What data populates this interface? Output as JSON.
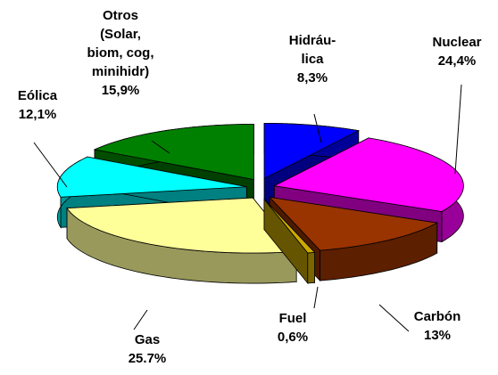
{
  "chart_data": {
    "type": "pie3d",
    "categories": [
      "Hidráu-\nlica",
      "Nuclear",
      "Carbón",
      "Fuel",
      "Gas",
      "Eólica",
      "Otros\n(Solar,\nbiom, cog,\nminihidr)"
    ],
    "values": [
      8.3,
      24.4,
      13,
      0.6,
      25.7,
      12.1,
      15.9
    ],
    "value_labels": [
      "8,3%",
      "24,4%",
      "13%",
      "0,6%",
      "25.7%",
      "12,1%",
      "15,9%"
    ],
    "colors": [
      "#0000ff",
      "#ff00ff",
      "#993300",
      "#ccaa00",
      "#ffff99",
      "#00ffff",
      "#008000"
    ]
  }
}
